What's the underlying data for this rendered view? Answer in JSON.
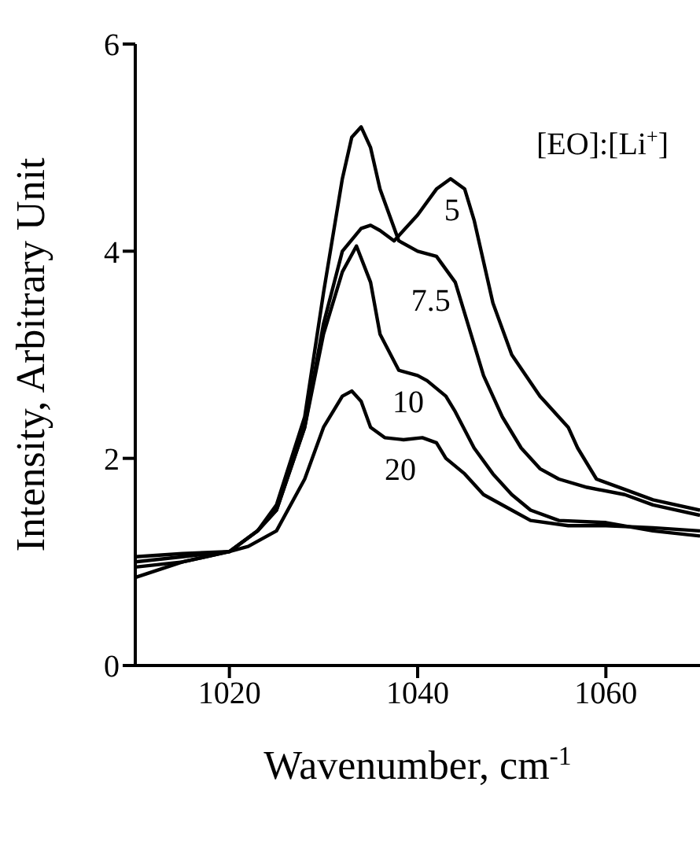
{
  "chart_data": {
    "type": "line",
    "xlabel": "Wavenumber, cm$^{-1}$",
    "ylabel": "Intensity, Arbitrary Unit",
    "legend_title": "[EO]:[Li$^{+}$]",
    "legend": false,
    "marker": "none",
    "line_style": "solid",
    "grid": false,
    "xlim": [
      1010,
      1070
    ],
    "xticks": [
      1020,
      1040,
      1060
    ],
    "ylim": [
      0,
      6
    ],
    "yticks": [
      0,
      2,
      4,
      6
    ],
    "series": [
      {
        "name": "5",
        "color": "#000000",
        "x": [
          1010,
          1015,
          1020,
          1023,
          1025,
          1028,
          1030,
          1032,
          1034,
          1035,
          1036,
          1037.5,
          1040,
          1042,
          1043.5,
          1045,
          1046,
          1048,
          1050,
          1053,
          1056,
          1057,
          1059,
          1062,
          1065,
          1070
        ],
        "values": [
          0.95,
          1.0,
          1.1,
          1.3,
          1.5,
          2.3,
          3.3,
          4.0,
          4.22,
          4.25,
          4.2,
          4.1,
          4.35,
          4.6,
          4.7,
          4.6,
          4.3,
          3.5,
          3.0,
          2.6,
          2.3,
          2.1,
          1.8,
          1.7,
          1.6,
          1.5
        ]
      },
      {
        "name": "7.5",
        "color": "#000000",
        "x": [
          1010,
          1015,
          1020,
          1023,
          1025,
          1028,
          1030,
          1032,
          1033,
          1034,
          1035,
          1036,
          1038,
          1040,
          1042,
          1044,
          1046,
          1047,
          1049,
          1051,
          1053,
          1055,
          1058,
          1062,
          1065,
          1070
        ],
        "values": [
          0.85,
          1.0,
          1.1,
          1.3,
          1.55,
          2.4,
          3.6,
          4.7,
          5.1,
          5.2,
          5.0,
          4.6,
          4.1,
          4.0,
          3.95,
          3.7,
          3.1,
          2.8,
          2.4,
          2.1,
          1.9,
          1.8,
          1.72,
          1.65,
          1.55,
          1.45
        ]
      },
      {
        "name": "10",
        "color": "#000000",
        "x": [
          1010,
          1015,
          1020,
          1023,
          1025,
          1028,
          1030,
          1032,
          1033.5,
          1035,
          1036,
          1038,
          1040,
          1041,
          1043,
          1044,
          1046,
          1048,
          1050,
          1052,
          1055,
          1060,
          1065,
          1070
        ],
        "values": [
          1.0,
          1.05,
          1.1,
          1.3,
          1.5,
          2.3,
          3.2,
          3.8,
          4.05,
          3.7,
          3.2,
          2.85,
          2.8,
          2.75,
          2.6,
          2.45,
          2.1,
          1.85,
          1.65,
          1.5,
          1.4,
          1.38,
          1.3,
          1.25
        ]
      },
      {
        "name": "20",
        "color": "#000000",
        "x": [
          1010,
          1015,
          1020,
          1022,
          1025,
          1028,
          1030,
          1032,
          1033,
          1034,
          1035,
          1036.5,
          1038.5,
          1040.5,
          1042,
          1043,
          1045,
          1047,
          1050,
          1052,
          1056,
          1060,
          1065,
          1070
        ],
        "values": [
          1.05,
          1.08,
          1.1,
          1.15,
          1.3,
          1.8,
          2.3,
          2.6,
          2.65,
          2.55,
          2.3,
          2.2,
          2.18,
          2.2,
          2.15,
          2.0,
          1.85,
          1.65,
          1.5,
          1.4,
          1.35,
          1.35,
          1.33,
          1.3
        ]
      }
    ]
  }
}
